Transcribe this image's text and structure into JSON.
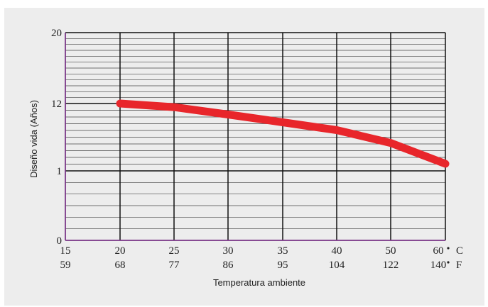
{
  "chart_data": {
    "type": "line",
    "xlabel": "Temperatura ambiente",
    "ylabel": "Diseño vida (Años)",
    "x_unit_primary": "C",
    "x_unit_secondary": "F",
    "x_ticks": [
      {
        "c": "15",
        "f": "59"
      },
      {
        "c": "20",
        "f": "68"
      },
      {
        "c": "25",
        "f": "77"
      },
      {
        "c": "30",
        "f": "86"
      },
      {
        "c": "35",
        "f": "95"
      },
      {
        "c": "40",
        "f": "104"
      },
      {
        "c": "50",
        "f": "122"
      },
      {
        "c": "60",
        "f": "140"
      }
    ],
    "y_ticks": [
      "0",
      "1",
      "12",
      "20"
    ],
    "grid": true,
    "series": [
      {
        "color": "#e8262b",
        "points": [
          {
            "x": "20",
            "y": 12.0
          },
          {
            "x": "25",
            "y": 10.5
          },
          {
            "x": "30",
            "y": 8.0
          },
          {
            "x": "35",
            "y": 6.0
          },
          {
            "x": "40",
            "y": 4.5
          },
          {
            "x": "50",
            "y": 2.8
          },
          {
            "x": "60",
            "y": 1.3
          }
        ]
      }
    ]
  }
}
